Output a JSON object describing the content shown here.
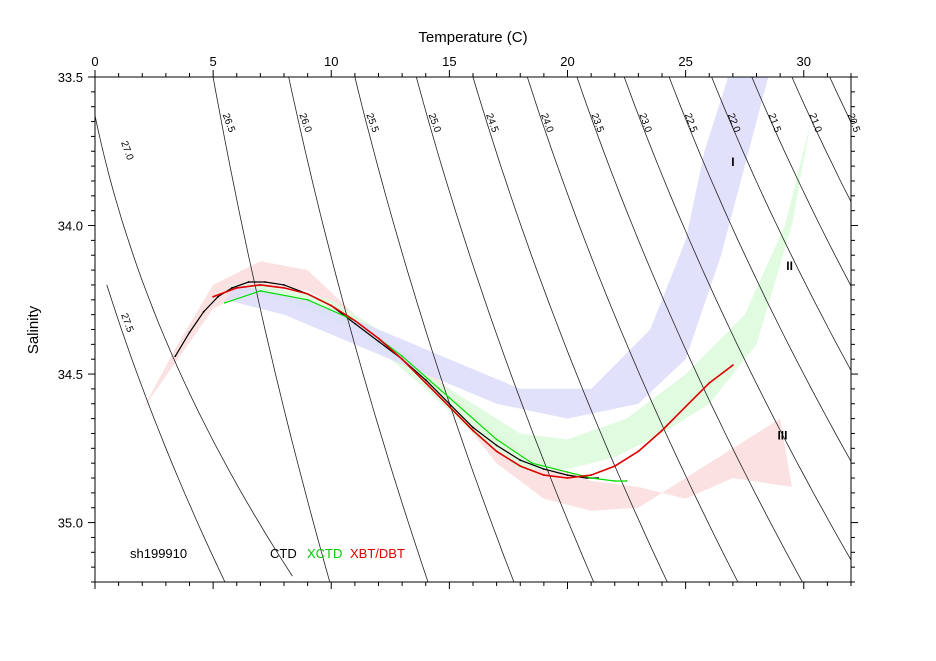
{
  "chart_data": {
    "type": "scatter",
    "xlabel": "Temperature (C)",
    "ylabel": "Salinity",
    "xlim": [
      0,
      32
    ],
    "ylim": [
      35.2,
      33.5
    ],
    "y_axis_inverted": true,
    "x_ticks": [
      "0",
      "5",
      "10",
      "15",
      "20",
      "25",
      "30"
    ],
    "y_ticks": [
      "33.5",
      "34.0",
      "34.5",
      "35.0"
    ],
    "grid": false,
    "sigma_isopycnals": [
      {
        "label": "27.5",
        "t_at_top": 0.0
      },
      {
        "label": "27.0",
        "t_at_top": 0.0
      },
      {
        "label": "26.5",
        "t_at_top": 5.0
      },
      {
        "label": "26.0",
        "t_at_top": 8.2
      },
      {
        "label": "25.5",
        "t_at_top": 11.0
      },
      {
        "label": "25.0",
        "t_at_top": 13.6
      },
      {
        "label": "24.5",
        "t_at_top": 16.0
      },
      {
        "label": "24.0",
        "t_at_top": 18.3
      },
      {
        "label": "23.5",
        "t_at_top": 20.4
      },
      {
        "label": "23.0",
        "t_at_top": 22.4
      },
      {
        "label": "22.5",
        "t_at_top": 24.3
      },
      {
        "label": "22.0",
        "t_at_top": 26.1
      },
      {
        "label": "21.5",
        "t_at_top": 27.8
      },
      {
        "label": "21.0",
        "t_at_top": 29.5
      },
      {
        "label": "20.5",
        "t_at_top": 31.1
      }
    ],
    "regions": [
      {
        "label": "I",
        "color": "#dcdcfa",
        "envelope": [
          [
            5.5,
            34.25
          ],
          [
            8,
            34.3
          ],
          [
            11,
            34.4
          ],
          [
            14,
            34.5
          ],
          [
            17,
            34.6
          ],
          [
            20,
            34.65
          ],
          [
            23,
            34.6
          ],
          [
            25,
            34.45
          ],
          [
            26.5,
            34.1
          ],
          [
            27.5,
            33.8
          ],
          [
            28.5,
            33.5
          ],
          [
            26.8,
            33.5
          ],
          [
            25.8,
            33.75
          ],
          [
            25,
            34.05
          ],
          [
            23.5,
            34.35
          ],
          [
            21,
            34.55
          ],
          [
            18,
            34.55
          ],
          [
            15,
            34.45
          ],
          [
            12,
            34.35
          ],
          [
            9,
            34.25
          ],
          [
            6,
            34.2
          ]
        ]
      },
      {
        "label": "II",
        "color": "#dcfadc",
        "envelope": [
          [
            5.5,
            34.2
          ],
          [
            8,
            34.25
          ],
          [
            11,
            34.35
          ],
          [
            14,
            34.55
          ],
          [
            16,
            34.7
          ],
          [
            18,
            34.82
          ],
          [
            20,
            34.82
          ],
          [
            22,
            34.78
          ],
          [
            24,
            34.7
          ],
          [
            26,
            34.6
          ],
          [
            28,
            34.4
          ],
          [
            29.5,
            34.0
          ],
          [
            30.3,
            33.65
          ],
          [
            29.2,
            34.0
          ],
          [
            27.5,
            34.3
          ],
          [
            25,
            34.5
          ],
          [
            22.5,
            34.65
          ],
          [
            20,
            34.72
          ],
          [
            18,
            34.7
          ],
          [
            16,
            34.6
          ],
          [
            14,
            34.5
          ],
          [
            12,
            34.35
          ],
          [
            10,
            34.25
          ],
          [
            7,
            34.2
          ]
        ]
      },
      {
        "label": "III",
        "color": "#fadcdc",
        "envelope": [
          [
            2,
            34.62
          ],
          [
            3.5,
            34.4
          ],
          [
            5,
            34.2
          ],
          [
            7,
            34.12
          ],
          [
            9,
            34.15
          ],
          [
            11,
            34.3
          ],
          [
            13,
            34.45
          ],
          [
            15,
            34.6
          ],
          [
            17,
            34.8
          ],
          [
            19,
            34.92
          ],
          [
            21,
            34.96
          ],
          [
            23,
            34.95
          ],
          [
            25,
            34.85
          ],
          [
            27,
            34.75
          ],
          [
            29,
            34.65
          ],
          [
            29.5,
            34.88
          ],
          [
            27,
            34.85
          ],
          [
            25,
            34.92
          ],
          [
            23,
            34.88
          ],
          [
            21,
            34.86
          ],
          [
            19,
            34.8
          ],
          [
            17,
            34.7
          ],
          [
            15,
            34.55
          ],
          [
            13,
            34.42
          ],
          [
            11,
            34.3
          ],
          [
            9,
            34.22
          ],
          [
            7,
            34.2
          ],
          [
            5,
            34.28
          ],
          [
            3.5,
            34.45
          ]
        ]
      }
    ],
    "series": [
      {
        "name": "CTD",
        "color": "#000000",
        "x": [
          3.4,
          4.0,
          4.6,
          5.2,
          5.8,
          6.5,
          7.2,
          8.0,
          9.0,
          10.0,
          11.0,
          12.0,
          13.0,
          14.0,
          15.0,
          16.0,
          17.0,
          18.0,
          19.0,
          20.0,
          20.8,
          21.3
        ],
        "y": [
          34.44,
          34.36,
          34.29,
          34.24,
          34.21,
          34.19,
          34.19,
          34.2,
          34.23,
          34.27,
          34.33,
          34.39,
          34.45,
          34.52,
          34.6,
          34.68,
          34.74,
          34.79,
          34.82,
          34.84,
          34.85,
          34.85
        ]
      },
      {
        "name": "XCTD",
        "color": "#00dd00",
        "x": [
          5.5,
          7.0,
          9.0,
          11.0,
          13.0,
          15.0,
          17.0,
          18.5,
          20.0,
          21.0,
          22.0,
          22.5
        ],
        "y": [
          34.26,
          34.22,
          34.25,
          34.32,
          34.44,
          34.58,
          34.72,
          34.8,
          34.83,
          34.85,
          34.86,
          34.86
        ]
      },
      {
        "name": "XBT/DBT",
        "color": "#dd0000",
        "x": [
          5.0,
          6.0,
          7.0,
          8.0,
          9.0,
          10.0,
          11.0,
          12.0,
          13.0,
          14.0,
          15.0,
          16.0,
          17.0,
          18.0,
          19.0,
          20.0,
          21.0,
          22.0,
          23.0,
          24.0,
          25.0,
          26.0,
          27.0
        ],
        "y": [
          34.24,
          34.21,
          34.2,
          34.21,
          34.23,
          34.27,
          34.32,
          34.38,
          34.45,
          34.53,
          34.61,
          34.69,
          34.76,
          34.81,
          34.84,
          34.85,
          34.84,
          34.81,
          34.76,
          34.69,
          34.61,
          34.53,
          34.47
        ]
      }
    ],
    "annotations": [
      "sh199910"
    ]
  },
  "legend": {
    "station": "sh199910",
    "items": [
      {
        "label": "CTD",
        "color": "#000000"
      },
      {
        "label": "XCTD",
        "color": "#00dd00"
      },
      {
        "label": "XBT/DBT",
        "color": "#dd0000"
      }
    ]
  }
}
